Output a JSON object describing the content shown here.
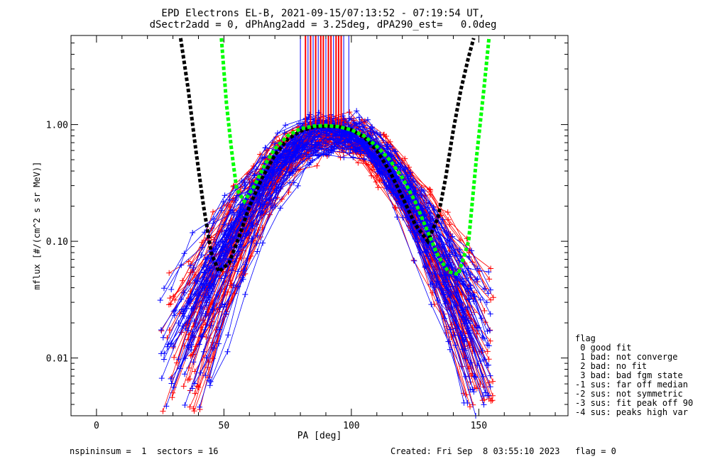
{
  "header": {
    "title": "EPD Electrons EL-B, 2021-09-15/07:13:52 - 07:19:54 UT,",
    "subtitle": "dSectr2add = 0, dPhAng2add = 3.25deg, dPA290_est=   0.0deg"
  },
  "footer": {
    "left": "nspininsum =  1  sectors = 16",
    "right": "Created: Fri Sep  8 03:55:10 2023   flag = 0"
  },
  "legend": {
    "title": "flag",
    "items": [
      " 0 good fit",
      " 1 bad: not converge",
      " 2 bad: no fit",
      " 3 bad: bad fgm state",
      "-1 sus: far off median",
      "-2 sus: not symmetric",
      "-3 sus: fit peak off 90",
      "-4 sus: peaks high var"
    ]
  },
  "colors": {
    "red": "#ff0000",
    "blue": "#0000ff",
    "black": "#000000",
    "green": "#00ff00"
  },
  "chart_data": {
    "type": "line",
    "xlabel": "PA [deg]",
    "ylabel": "mflux [#/(cm^2 s sr MeV)]",
    "xlim": [
      -10,
      185
    ],
    "ylim": [
      0.0032,
      5.8
    ],
    "yscale": "log",
    "x_ticks": [
      0,
      50,
      100,
      150
    ],
    "y_ticks": [
      0.01,
      0.1,
      1.0
    ],
    "y_tick_labels": [
      "0.01",
      "0.10",
      "1.00"
    ],
    "series": [
      {
        "color": "black",
        "style": "dashed-thick",
        "x": [
          33,
          36,
          39,
          42,
          45,
          48,
          52,
          56,
          60,
          65,
          70,
          75,
          80,
          85,
          90,
          95,
          100,
          105,
          110,
          115,
          120,
          125,
          130,
          134,
          137,
          140,
          143,
          146,
          148
        ],
        "y": [
          5.5,
          2.0,
          0.6,
          0.2,
          0.08,
          0.055,
          0.065,
          0.11,
          0.2,
          0.35,
          0.55,
          0.75,
          0.88,
          0.95,
          0.97,
          0.96,
          0.9,
          0.78,
          0.6,
          0.4,
          0.24,
          0.14,
          0.1,
          0.16,
          0.35,
          0.9,
          2.0,
          3.8,
          5.5
        ]
      },
      {
        "color": "green",
        "style": "dashed-thick",
        "x": [
          49,
          51,
          53,
          55,
          58,
          62,
          66,
          70,
          75,
          80,
          85,
          90,
          95,
          100,
          105,
          110,
          115,
          120,
          125,
          130,
          134,
          138,
          142,
          146,
          149,
          152,
          154
        ],
        "y": [
          5.5,
          1.5,
          0.6,
          0.28,
          0.22,
          0.3,
          0.45,
          0.62,
          0.8,
          0.92,
          0.97,
          0.98,
          0.96,
          0.9,
          0.8,
          0.65,
          0.5,
          0.35,
          0.22,
          0.12,
          0.075,
          0.055,
          0.052,
          0.1,
          0.5,
          2.0,
          5.5
        ]
      }
    ],
    "traces": {
      "count_per_color": 60,
      "pa_start_range": [
        25,
        45
      ],
      "pa_end_range": [
        143,
        156
      ],
      "peak_pa_range": [
        85,
        100
      ],
      "peak_flux_range": [
        0.7,
        1.05
      ],
      "low_flux_range": [
        0.004,
        0.05
      ],
      "symbol": "+"
    },
    "peak_markers": {
      "red_x": [
        82,
        84,
        86,
        88,
        89,
        91,
        92,
        94,
        95,
        96
      ],
      "blue_x": [
        80,
        83,
        85,
        87,
        90,
        93,
        97,
        99
      ],
      "y_top": 5.8,
      "y_bottom": 0.95
    }
  }
}
